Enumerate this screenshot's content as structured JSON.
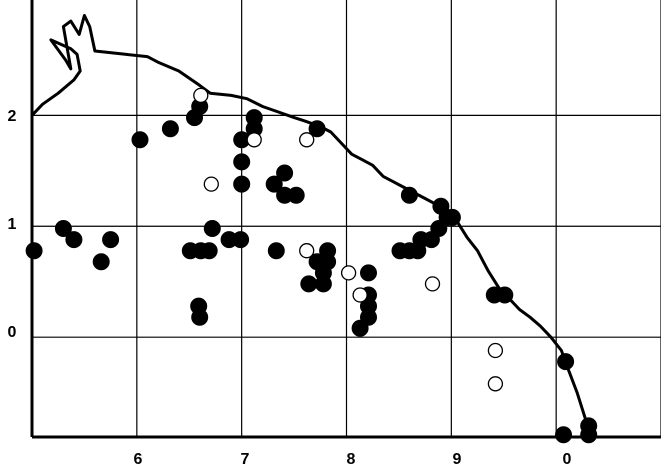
{
  "map": {
    "x_ticks": [
      "6",
      "7",
      "8",
      "9",
      "0"
    ],
    "y_ticks": [
      "2",
      "1",
      "0"
    ],
    "colors": {
      "background": "#ffffff",
      "grid": "#000000",
      "coastline": "#000000",
      "filled_marker": "#000000",
      "open_marker_fill": "#ffffff",
      "open_marker_stroke": "#000000"
    },
    "frame": "left-and-bottom-axes",
    "grid": "on",
    "marker_types": [
      "filled-circle",
      "open-circle"
    ]
  },
  "chart_data": {
    "type": "scatter",
    "x_tick_labels": [
      "6",
      "7",
      "8",
      "9",
      "0"
    ],
    "y_tick_labels": [
      "0",
      "1",
      "2"
    ],
    "xlim": [
      5.0,
      11.0
    ],
    "ylim": [
      -0.9,
      2.95
    ],
    "grid": true,
    "series": [
      {
        "marker": "filled-circle",
        "points": [
          [
            5.02,
            0.78
          ],
          [
            5.3,
            0.98
          ],
          [
            5.4,
            0.88
          ],
          [
            5.66,
            0.68
          ],
          [
            5.75,
            0.88
          ],
          [
            6.03,
            1.78
          ],
          [
            6.32,
            1.88
          ],
          [
            6.55,
            1.98
          ],
          [
            6.6,
            2.08
          ],
          [
            6.51,
            0.78
          ],
          [
            6.61,
            0.78
          ],
          [
            6.69,
            0.78
          ],
          [
            6.59,
            0.28
          ],
          [
            6.6,
            0.18
          ],
          [
            6.72,
            0.98
          ],
          [
            6.88,
            0.88
          ],
          [
            6.99,
            0.88
          ],
          [
            7.0,
            1.78
          ],
          [
            7.0,
            1.58
          ],
          [
            7.0,
            1.38
          ],
          [
            7.12,
            1.88
          ],
          [
            7.12,
            1.98
          ],
          [
            7.31,
            1.38
          ],
          [
            7.41,
            1.48
          ],
          [
            7.41,
            1.28
          ],
          [
            7.52,
            1.28
          ],
          [
            7.33,
            0.78
          ],
          [
            7.72,
            1.88
          ],
          [
            7.64,
            0.48
          ],
          [
            7.72,
            0.68
          ],
          [
            7.78,
            0.48
          ],
          [
            7.78,
            0.58
          ],
          [
            7.82,
            0.68
          ],
          [
            7.82,
            0.78
          ],
          [
            8.13,
            0.08
          ],
          [
            8.21,
            0.58
          ],
          [
            8.21,
            0.38
          ],
          [
            8.21,
            0.28
          ],
          [
            8.21,
            0.18
          ],
          [
            8.51,
            0.78
          ],
          [
            8.6,
            0.78
          ],
          [
            8.6,
            1.28
          ],
          [
            8.68,
            0.78
          ],
          [
            8.71,
            0.88
          ],
          [
            8.81,
            0.88
          ],
          [
            8.88,
            0.98
          ],
          [
            8.9,
            1.18
          ],
          [
            8.96,
            1.08
          ],
          [
            9.01,
            1.08
          ],
          [
            9.41,
            0.38
          ],
          [
            9.51,
            0.38
          ],
          [
            10.09,
            -0.22
          ],
          [
            10.07,
            -0.88
          ],
          [
            10.31,
            -0.8
          ],
          [
            10.31,
            -0.88
          ]
        ]
      },
      {
        "marker": "open-circle",
        "points": [
          [
            6.61,
            2.18
          ],
          [
            6.71,
            1.38
          ],
          [
            7.12,
            1.78
          ],
          [
            7.62,
            1.78
          ],
          [
            7.62,
            0.78
          ],
          [
            8.02,
            0.58
          ],
          [
            8.13,
            0.38
          ],
          [
            8.82,
            0.48
          ],
          [
            9.42,
            -0.12
          ],
          [
            9.42,
            -0.42
          ]
        ]
      }
    ],
    "coastline": [
      [
        5.0,
        2.0
      ],
      [
        5.1,
        2.1
      ],
      [
        5.25,
        2.2
      ],
      [
        5.4,
        2.32
      ],
      [
        5.46,
        2.4
      ],
      [
        5.43,
        2.55
      ],
      [
        5.37,
        2.6
      ],
      [
        5.18,
        2.68
      ],
      [
        5.32,
        2.5
      ],
      [
        5.37,
        2.42
      ],
      [
        5.3,
        2.8
      ],
      [
        5.37,
        2.85
      ],
      [
        5.45,
        2.73
      ],
      [
        5.5,
        2.9
      ],
      [
        5.55,
        2.8
      ],
      [
        5.6,
        2.58
      ],
      [
        5.7,
        2.57
      ],
      [
        5.9,
        2.55
      ],
      [
        6.1,
        2.53
      ],
      [
        6.2,
        2.48
      ],
      [
        6.4,
        2.4
      ],
      [
        6.6,
        2.27
      ],
      [
        6.7,
        2.2
      ],
      [
        6.9,
        2.18
      ],
      [
        7.05,
        2.15
      ],
      [
        7.2,
        2.08
      ],
      [
        7.35,
        2.03
      ],
      [
        7.5,
        1.98
      ],
      [
        7.6,
        1.95
      ],
      [
        7.75,
        1.9
      ],
      [
        7.85,
        1.85
      ],
      [
        7.95,
        1.75
      ],
      [
        8.05,
        1.65
      ],
      [
        8.15,
        1.6
      ],
      [
        8.25,
        1.55
      ],
      [
        8.35,
        1.45
      ],
      [
        8.45,
        1.4
      ],
      [
        8.55,
        1.35
      ],
      [
        8.65,
        1.3
      ],
      [
        8.75,
        1.25
      ],
      [
        8.85,
        1.2
      ],
      [
        8.95,
        1.15
      ],
      [
        9.05,
        1.05
      ],
      [
        9.15,
        0.9
      ],
      [
        9.25,
        0.78
      ],
      [
        9.35,
        0.6
      ],
      [
        9.45,
        0.45
      ],
      [
        9.55,
        0.35
      ],
      [
        9.65,
        0.25
      ],
      [
        9.75,
        0.18
      ],
      [
        9.85,
        0.1
      ],
      [
        9.95,
        0.0
      ],
      [
        10.05,
        -0.12
      ],
      [
        10.12,
        -0.3
      ],
      [
        10.2,
        -0.5
      ],
      [
        10.25,
        -0.65
      ],
      [
        10.3,
        -0.8
      ],
      [
        10.32,
        -0.9
      ]
    ]
  }
}
